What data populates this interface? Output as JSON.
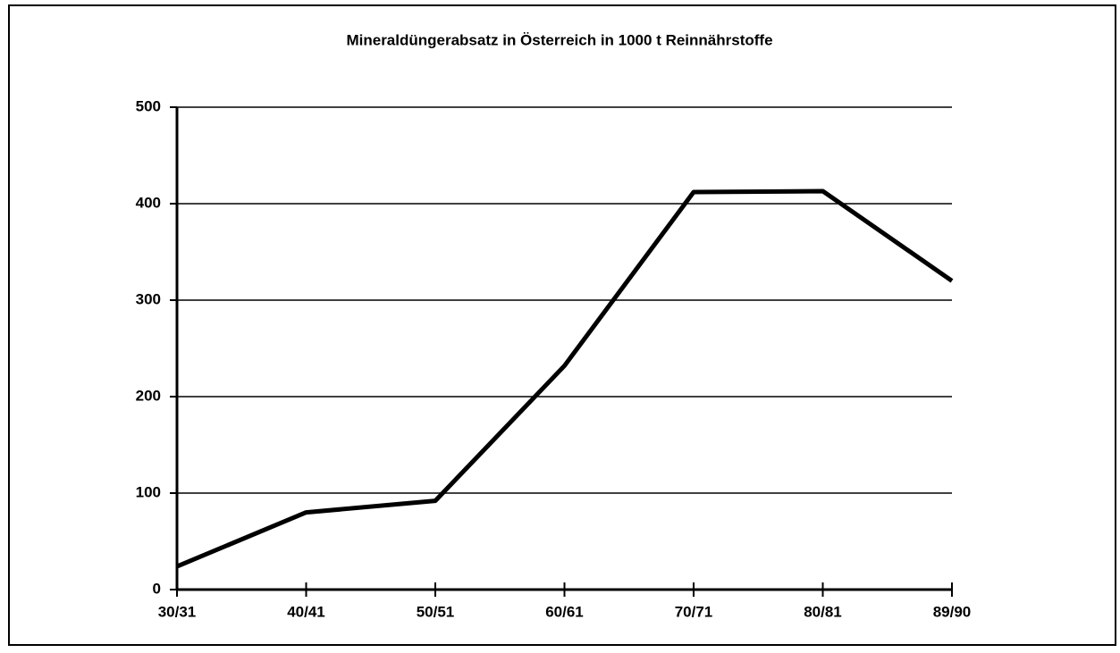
{
  "chart_data": {
    "type": "line",
    "title": "Mineraldüngerabsatz in Österreich in 1000 t Reinnährstoffe",
    "categories": [
      "30/31",
      "40/41",
      "50/51",
      "60/61",
      "70/71",
      "80/81",
      "89/90"
    ],
    "series": [
      {
        "color": "#000000",
        "values": [
          24,
          80,
          92,
          232,
          412,
          413,
          320
        ]
      }
    ],
    "ylim": [
      0,
      500
    ],
    "yticks": [
      0,
      100,
      200,
      300,
      400,
      500
    ],
    "grid": true
  }
}
